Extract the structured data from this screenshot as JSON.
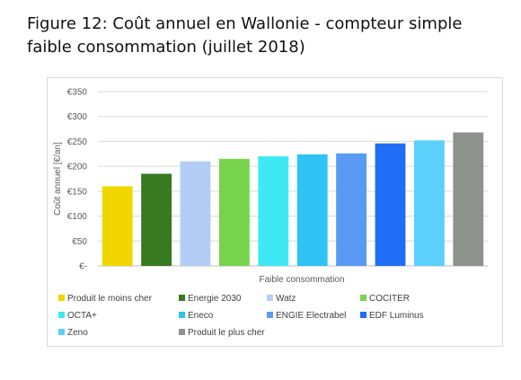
{
  "figure": {
    "caption_line1": "Figure 12: Coût annuel en Wallonie - compteur simple",
    "caption_line2": "faible consommation (juillet 2018)"
  },
  "chart_data": {
    "type": "bar",
    "title": "",
    "xlabel": "Faible consommation",
    "ylabel": "Coût annuel [€/an]",
    "categories": [
      "Faible consommation"
    ],
    "ylim": [
      0,
      350
    ],
    "yticks": [
      {
        "value": 0,
        "label": "€-"
      },
      {
        "value": 50,
        "label": "€50"
      },
      {
        "value": 100,
        "label": "€100"
      },
      {
        "value": 150,
        "label": "€150"
      },
      {
        "value": 200,
        "label": "€200"
      },
      {
        "value": 250,
        "label": "€250"
      },
      {
        "value": 300,
        "label": "€300"
      },
      {
        "value": 350,
        "label": "€350"
      }
    ],
    "grid": true,
    "legend_position": "bottom",
    "series": [
      {
        "name": "Produit le moins cher",
        "value": 160,
        "color": "#f2d600"
      },
      {
        "name": "Energie 2030",
        "value": 185,
        "color": "#377a1f"
      },
      {
        "name": "Watz",
        "value": 210,
        "color": "#b4cdf5"
      },
      {
        "name": "COCITER",
        "value": 215,
        "color": "#77d44c"
      },
      {
        "name": "OCTA+",
        "value": 220,
        "color": "#3ee9f5"
      },
      {
        "name": "Eneco",
        "value": 224,
        "color": "#2ec2f5"
      },
      {
        "name": "ENGIE Electrabel",
        "value": 226,
        "color": "#5a9af5"
      },
      {
        "name": "EDF Luminus",
        "value": 246,
        "color": "#1f6ef5"
      },
      {
        "name": "Zeno",
        "value": 252,
        "color": "#5ad0fa"
      },
      {
        "name": "Produit le plus cher",
        "value": 268,
        "color": "#8e928c"
      }
    ]
  }
}
